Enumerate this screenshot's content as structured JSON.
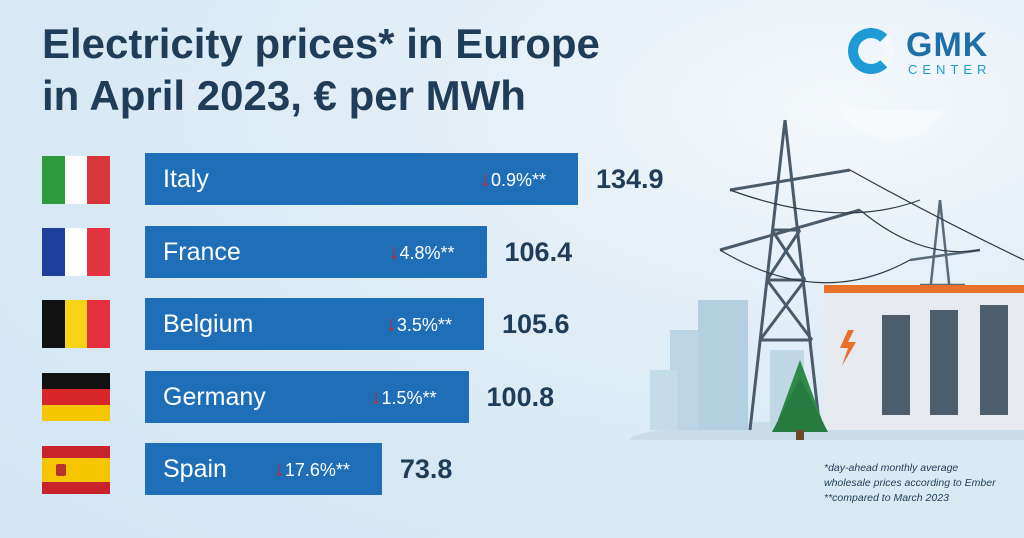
{
  "header": {
    "title_line1": "Electricity prices* in Europe",
    "title_line2": "in April 2023, € per MWh"
  },
  "logo": {
    "name": "GMK",
    "sub": "CENTER",
    "icon": "gmk-ring-logo-icon"
  },
  "footnotes": {
    "note1_line1": "*day-ahead monthly average",
    "note1_line2": "wholesale prices according to Ember",
    "note2": "**compared to March 2023"
  },
  "colors": {
    "bar": "#1e6fb8",
    "title": "#1f3c58",
    "arrow_down": "#c8283a",
    "accent": "#1e9ad6"
  },
  "chart_data": {
    "type": "bar",
    "orientation": "horizontal",
    "title": "Electricity prices* in Europe in April 2023, € per MWh",
    "categories": [
      "Italy",
      "France",
      "Belgium",
      "Germany",
      "Spain"
    ],
    "values": [
      134.9,
      106.4,
      105.6,
      100.8,
      73.8
    ],
    "value_labels": [
      "134.9",
      "106.4",
      "105.6",
      "100.8",
      "73.8"
    ],
    "change_labels": [
      "0.9%**",
      "4.8%**",
      "3.5%**",
      "1.5%**",
      "17.6%**"
    ],
    "change_values": [
      -0.9,
      -4.8,
      -3.5,
      -1.5,
      -17.6
    ],
    "flags": [
      "flag-italy-icon",
      "flag-france-icon",
      "flag-belgium-icon",
      "flag-germany-icon",
      "flag-spain-icon"
    ],
    "legend": "none",
    "grid": false
  }
}
